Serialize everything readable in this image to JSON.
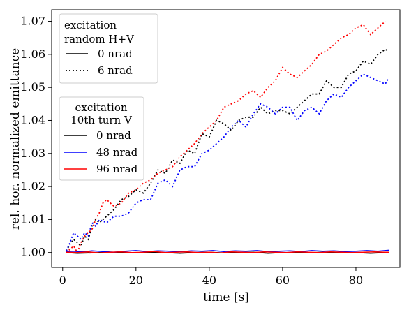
{
  "chart_data": {
    "type": "line",
    "xlabel": "time [s]",
    "ylabel": "rel. hor. normalized emittance",
    "xlim": [
      -3,
      92
    ],
    "ylim": [
      0.9955,
      1.0735
    ],
    "xticks": [
      0,
      20,
      40,
      60,
      80
    ],
    "yticks": [
      1.0,
      1.01,
      1.02,
      1.03,
      1.04,
      1.05,
      1.06,
      1.07
    ],
    "ytick_labels": [
      "1.00",
      "1.01",
      "1.02",
      "1.03",
      "1.04",
      "1.05",
      "1.06",
      "1.07"
    ],
    "grid": false,
    "legends": [
      {
        "placement": "top-left",
        "title_lines": [
          "excitation",
          "random H+V"
        ],
        "entries": [
          {
            "label": "0 nrad",
            "color": "#000000",
            "dash": "dotted-no"
          },
          {
            "label": "6 nrad",
            "color": "#000000",
            "dash": "dotted"
          }
        ]
      },
      {
        "placement": "upper-left",
        "title_lines": [
          "excitation",
          "10th turn V"
        ],
        "entries": [
          {
            "label": "0 nrad",
            "color": "#000000",
            "dash": "solid"
          },
          {
            "label": "48 nrad",
            "color": "#0000ff",
            "dash": "solid"
          },
          {
            "label": "96 nrad",
            "color": "#ff0000",
            "dash": "solid"
          }
        ]
      }
    ],
    "series": [
      {
        "color": "#000000",
        "dash": "dotted",
        "x": [
          1,
          2,
          3,
          4,
          5,
          6,
          7,
          8,
          9,
          10,
          12,
          14,
          16,
          18,
          20,
          22,
          24,
          26,
          28,
          30,
          32,
          34,
          36,
          38,
          40,
          42,
          44,
          46,
          48,
          50,
          52,
          54,
          56,
          58,
          60,
          62,
          64,
          66,
          68,
          70,
          72,
          74,
          76,
          78,
          80,
          82,
          84,
          86,
          88,
          89
        ],
        "y": [
          1.0005,
          1.0025,
          1.004,
          1.003,
          1.002,
          1.005,
          1.004,
          1.008,
          1.01,
          1.009,
          1.011,
          1.013,
          1.016,
          1.017,
          1.019,
          1.018,
          1.021,
          1.025,
          1.024,
          1.028,
          1.027,
          1.031,
          1.03,
          1.036,
          1.035,
          1.04,
          1.039,
          1.037,
          1.04,
          1.041,
          1.041,
          1.044,
          1.042,
          1.043,
          1.043,
          1.042,
          1.044,
          1.046,
          1.048,
          1.048,
          1.052,
          1.05,
          1.05,
          1.054,
          1.055,
          1.058,
          1.057,
          1.06,
          1.0615,
          1.061
        ]
      },
      {
        "color": "#0000ff",
        "dash": "dotted",
        "x": [
          1,
          2,
          3,
          4,
          5,
          6,
          7,
          8,
          9,
          10,
          12,
          14,
          16,
          18,
          20,
          22,
          24,
          26,
          28,
          30,
          32,
          34,
          36,
          38,
          40,
          42,
          44,
          46,
          48,
          50,
          52,
          54,
          56,
          58,
          60,
          62,
          64,
          66,
          68,
          70,
          72,
          74,
          76,
          78,
          80,
          82,
          84,
          86,
          88,
          89
        ],
        "y": [
          1.0005,
          1.003,
          1.006,
          1.005,
          1.004,
          1.006,
          1.005,
          1.009,
          1.008,
          1.01,
          1.009,
          1.011,
          1.011,
          1.012,
          1.015,
          1.016,
          1.016,
          1.021,
          1.022,
          1.02,
          1.025,
          1.026,
          1.026,
          1.03,
          1.031,
          1.033,
          1.035,
          1.038,
          1.04,
          1.038,
          1.042,
          1.045,
          1.044,
          1.042,
          1.044,
          1.044,
          1.04,
          1.043,
          1.044,
          1.042,
          1.046,
          1.048,
          1.047,
          1.05,
          1.052,
          1.054,
          1.053,
          1.052,
          1.051,
          1.053
        ]
      },
      {
        "color": "#ff0000",
        "dash": "dotted",
        "x": [
          1,
          2,
          3,
          4,
          5,
          6,
          7,
          8,
          9,
          10,
          11,
          12,
          14,
          16,
          18,
          20,
          22,
          24,
          26,
          28,
          30,
          32,
          34,
          36,
          38,
          40,
          42,
          44,
          46,
          48,
          50,
          52,
          54,
          56,
          58,
          60,
          62,
          64,
          66,
          68,
          70,
          72,
          74,
          76,
          78,
          80,
          82,
          84,
          86,
          88
        ],
        "y": [
          1.0,
          1.001,
          1.002,
          1.0,
          1.003,
          1.005,
          1.006,
          1.007,
          1.01,
          1.012,
          1.015,
          1.016,
          1.014,
          1.015,
          1.018,
          1.019,
          1.021,
          1.022,
          1.024,
          1.025,
          1.026,
          1.029,
          1.031,
          1.033,
          1.036,
          1.038,
          1.04,
          1.044,
          1.045,
          1.046,
          1.048,
          1.049,
          1.047,
          1.05,
          1.052,
          1.056,
          1.054,
          1.053,
          1.055,
          1.057,
          1.06,
          1.061,
          1.063,
          1.065,
          1.066,
          1.068,
          1.069,
          1.066,
          1.068,
          1.07
        ]
      },
      {
        "color": "#000000",
        "dash": "solid",
        "x": [
          1,
          4,
          8,
          12,
          16,
          20,
          24,
          28,
          32,
          36,
          40,
          44,
          48,
          52,
          56,
          60,
          64,
          68,
          72,
          76,
          80,
          84,
          88,
          89
        ],
        "y": [
          1.0,
          0.9998,
          0.9999,
          1.0001,
          1.0,
          0.9999,
          1.0001,
          1.0,
          0.9998,
          1.0,
          1.0001,
          0.9999,
          1.0,
          1.0001,
          0.9998,
          1.0,
          0.9999,
          1.0,
          1.0001,
          0.9999,
          1.0,
          0.9998,
          1.0,
          1.0
        ]
      },
      {
        "color": "#0000ff",
        "dash": "solid",
        "x": [
          1,
          3,
          5,
          8,
          11,
          14,
          17,
          20,
          23,
          26,
          29,
          32,
          35,
          38,
          41,
          44,
          47,
          50,
          53,
          56,
          59,
          62,
          65,
          68,
          71,
          74,
          77,
          80,
          83,
          86,
          89
        ],
        "y": [
          1.0003,
          1.0004,
          1.0002,
          1.0005,
          1.0003,
          1.0001,
          1.0004,
          1.0006,
          1.0003,
          1.0005,
          1.0004,
          1.0002,
          1.0005,
          1.0004,
          1.0006,
          1.0003,
          1.0005,
          1.0004,
          1.0006,
          1.0003,
          1.0004,
          1.0005,
          1.0003,
          1.0006,
          1.0004,
          1.0005,
          1.0003,
          1.0004,
          1.0006,
          1.0004,
          1.0007
        ]
      },
      {
        "color": "#ff0000",
        "dash": "solid",
        "x": [
          1,
          4,
          7,
          10,
          13,
          16,
          19,
          22,
          25,
          28,
          31,
          34,
          37,
          40,
          43,
          46,
          49,
          52,
          55,
          58,
          61,
          64,
          67,
          70,
          73,
          76,
          79,
          82,
          85,
          88,
          89
        ],
        "y": [
          1.0001,
          1.0,
          1.0002,
          0.9999,
          1.0001,
          1.0002,
          1.0,
          1.0001,
          1.0003,
          1.0,
          1.0001,
          1.0002,
          1.0,
          1.0001,
          0.9999,
          1.0002,
          1.0001,
          1.0,
          1.0002,
          1.0001,
          1.0,
          1.0002,
          1.0001,
          1.0,
          1.0002,
          1.0001,
          1.0,
          1.0001,
          1.0002,
          1.0001,
          1.0001
        ]
      }
    ]
  }
}
